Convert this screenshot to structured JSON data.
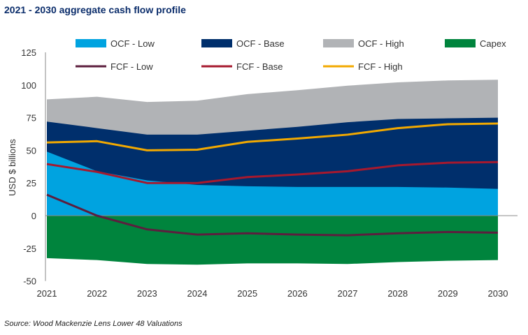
{
  "title": "2021 - 2030 aggregate cash flow profile",
  "source": "Source: Wood Mackenzie Lens Lower 48 Valuations",
  "chart_data": {
    "type": "area",
    "title": "2021 - 2030 aggregate cash flow profile",
    "ylabel": "USD $ billions",
    "xlabel": "",
    "x": [
      2021,
      2022,
      2023,
      2024,
      2025,
      2026,
      2027,
      2028,
      2029,
      2030
    ],
    "ylim": [
      -50,
      125
    ],
    "yticks": [
      125,
      100,
      75,
      50,
      25,
      0,
      -25,
      -50
    ],
    "grid": false,
    "legend": "top",
    "areas": [
      {
        "name": "OCF - High",
        "color": "#b1b3b6",
        "values": [
          89,
          91,
          87,
          88,
          93,
          96,
          99.5,
          102,
          103.5,
          104
        ]
      },
      {
        "name": "OCF - Base",
        "color": "#002f6c",
        "values": [
          72,
          67,
          62,
          62,
          65,
          68,
          71.5,
          74,
          74.5,
          75
        ]
      },
      {
        "name": "OCF - Low",
        "color": "#00a3e0",
        "values": [
          49,
          34,
          27,
          23.5,
          22.5,
          22,
          22,
          22,
          21.5,
          20.5
        ]
      },
      {
        "name": "Capex",
        "color": "#00843d",
        "values": [
          -32.5,
          -34,
          -37,
          -37.5,
          -36.5,
          -36.5,
          -37,
          -35.5,
          -34.5,
          -34
        ]
      }
    ],
    "lines": [
      {
        "name": "FCF - Low",
        "color": "#5c1e3e",
        "values": [
          16,
          0,
          -10.5,
          -14.5,
          -13.5,
          -14.5,
          -15,
          -13.5,
          -12.5,
          -13
        ]
      },
      {
        "name": "FCF - Base",
        "color": "#a6192e",
        "values": [
          39.5,
          33.5,
          25,
          25,
          29.5,
          31.5,
          34,
          38.5,
          40.5,
          41
        ]
      },
      {
        "name": "FCF - High",
        "color": "#f2a900",
        "values": [
          56,
          57,
          50,
          50.5,
          56.5,
          59,
          62,
          67,
          70,
          70.5
        ]
      }
    ],
    "legend_order": [
      "OCF - Low",
      "OCF - Base",
      "OCF - High",
      "Capex",
      "FCF - Low",
      "FCF - Base",
      "FCF - High"
    ]
  }
}
